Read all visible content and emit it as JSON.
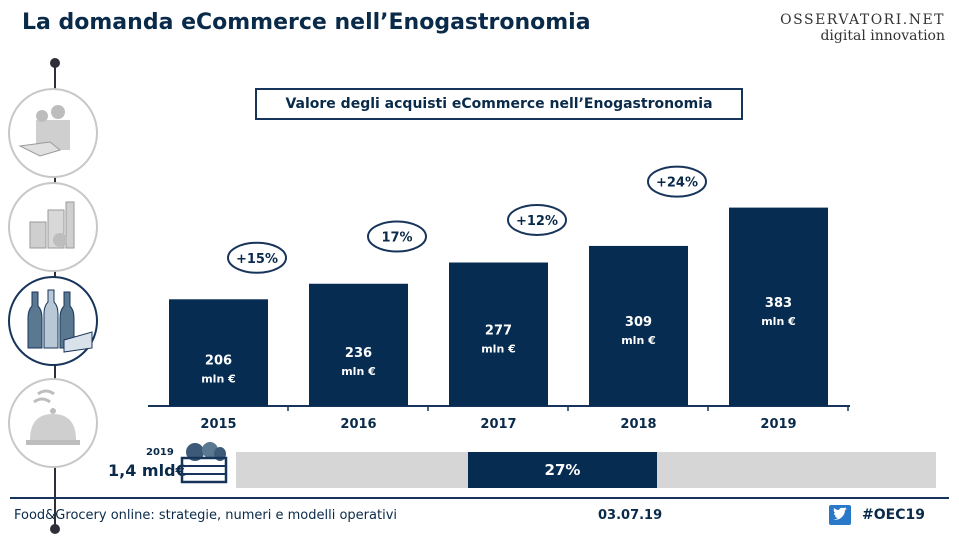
{
  "header": {
    "title": "La domanda eCommerce nell’Enogastronomia"
  },
  "logo": {
    "line1": "OSSERVATORI.NET",
    "line2": "digital innovation"
  },
  "sidebar": {
    "icons": [
      {
        "name": "grocery-bag-hand-icon",
        "active": false
      },
      {
        "name": "packaged-food-icon",
        "active": false
      },
      {
        "name": "wine-cheese-icon",
        "active": true
      },
      {
        "name": "food-delivery-cloche-icon",
        "active": false
      }
    ]
  },
  "chart_data": {
    "type": "bar",
    "title": "Valore degli acquisti eCommerce nell’Enogastronomia",
    "categories": [
      "2015",
      "2016",
      "2017",
      "2018",
      "2019"
    ],
    "values": [
      206,
      236,
      277,
      309,
      383
    ],
    "value_unit": "mln €",
    "growth_labels": [
      "+15%",
      "17%",
      "+12%",
      "+24%"
    ],
    "bar_color": "#062c52",
    "xlabel": "",
    "ylabel": ""
  },
  "share": {
    "year": "2019",
    "total": "1,4 mld€",
    "percent_label": "27%",
    "value": 0.27
  },
  "footer": {
    "left": "Food&Grocery online: strategie, numeri e modelli operativi",
    "date": "03.07.19",
    "hashtag": "#OEC19"
  }
}
